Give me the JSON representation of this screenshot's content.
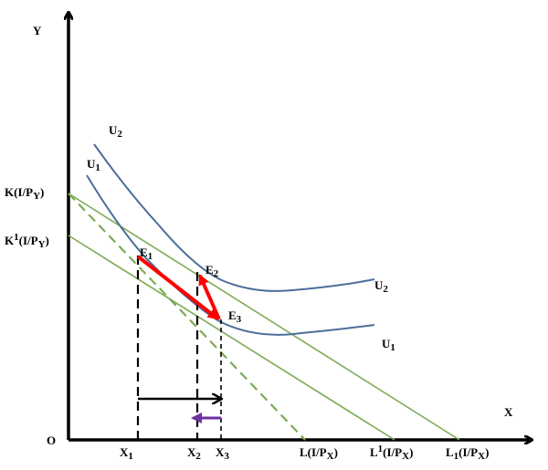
{
  "diagram": {
    "type": "indifference-curve-budget-line",
    "axes": {
      "y_label": "Y",
      "x_label": "X",
      "origin_label": "O"
    },
    "curves": {
      "u2_left_label": "U",
      "u2_left_sub": "2",
      "u1_left_label": "U",
      "u1_left_sub": "1",
      "u2_right_label": "U",
      "u2_right_sub": "2",
      "u1_right_label": "U",
      "u1_right_sub": "1"
    },
    "y_intercepts": {
      "k": {
        "prefix": "K(I/P",
        "sub": "Y",
        "suffix": ")"
      },
      "k1": {
        "prefix": "K",
        "sup": "1",
        "mid": "(I/P",
        "sub": "Y",
        "suffix": ")"
      }
    },
    "x_intercepts": {
      "l": {
        "prefix": "L(I/P",
        "sub": "X",
        "suffix": ")"
      },
      "lprime": {
        "prefix": "L",
        "sup": "1",
        "mid": "(I/P",
        "sub": "X",
        "suffix": ")"
      },
      "l1": {
        "prefix": "L",
        "sub1": "1",
        "mid": "(I/P",
        "sub": "X",
        "suffix": ")"
      }
    },
    "equilibria": {
      "e1": {
        "label": "E",
        "sub": "1"
      },
      "e2": {
        "label": "E",
        "sub": "2"
      },
      "e3": {
        "label": "E",
        "sub": "3"
      }
    },
    "x_ticks": {
      "x1": {
        "label": "X",
        "sub": "1"
      },
      "x2": {
        "label": "X",
        "sub": "2"
      },
      "x3": {
        "label": "X",
        "sub": "3"
      }
    },
    "colors": {
      "axis": "#000000",
      "indifference_curve": "#4a6e99",
      "budget_line": "#7eaa55",
      "movement_arrow": "#ff0000",
      "income_effect_arrow": "#000000",
      "substitution_effect_arrow": "#7030a0"
    }
  }
}
